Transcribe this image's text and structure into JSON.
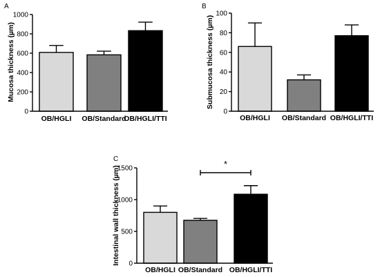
{
  "figure": {
    "panel_letters": [
      "A",
      "B",
      "C"
    ]
  },
  "chart_data": [
    {
      "type": "bar",
      "panel": "A",
      "categories": [
        "OB/HGLI",
        "OB/Standard",
        "OB/HGLI/TTI"
      ],
      "values": [
        608,
        583,
        833
      ],
      "errors": [
        72,
        38,
        88
      ],
      "colors": [
        "#d9d9d9",
        "#808080",
        "#000000"
      ],
      "ylabel": "Mucosa thickness (µm)",
      "ylim": [
        0,
        1000
      ],
      "yticks": [
        0,
        200,
        400,
        600,
        800,
        1000
      ],
      "grid": false,
      "legend": "none"
    },
    {
      "type": "bar",
      "panel": "B",
      "categories": [
        "OB/HGLI",
        "OB/Standard",
        "OB/HGLI/TTI"
      ],
      "values": [
        66,
        32,
        77
      ],
      "errors": [
        24,
        5,
        11
      ],
      "colors": [
        "#d9d9d9",
        "#808080",
        "#000000"
      ],
      "ylabel": "Submucosa thickness (µm)",
      "ylim": [
        0,
        100
      ],
      "yticks": [
        0,
        20,
        40,
        60,
        80,
        100
      ],
      "grid": false,
      "legend": "none"
    },
    {
      "type": "bar",
      "panel": "C",
      "categories": [
        "OB/HGLI",
        "OB/Standard",
        "OB/HGLI/TTI"
      ],
      "values": [
        800,
        675,
        1085
      ],
      "errors": [
        100,
        30,
        135
      ],
      "colors": [
        "#d9d9d9",
        "#808080",
        "#000000"
      ],
      "ylabel": "Intestinal wall thickness (µm)",
      "ylim": [
        0,
        1500
      ],
      "yticks": [
        0,
        500,
        1000,
        1500
      ],
      "significance": {
        "from": "OB/Standard",
        "to": "OB/HGLI/TTI",
        "label": "*"
      },
      "grid": false,
      "legend": "none"
    }
  ]
}
